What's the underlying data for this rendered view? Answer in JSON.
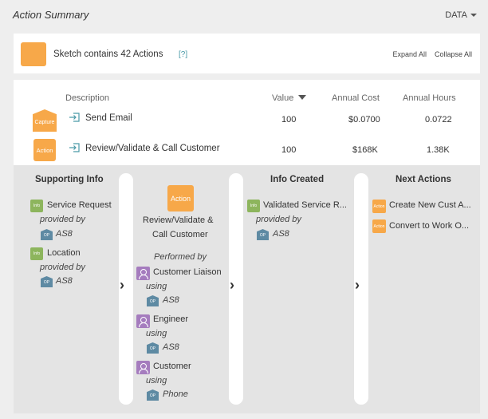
{
  "header": {
    "title": "Action Summary",
    "data_menu": "DATA"
  },
  "summary": {
    "sketch_text": "Sketch contains 42 Actions",
    "help": "[?]",
    "expand_all": "Expand All",
    "collapse_all": "Collapse All"
  },
  "table": {
    "columns": {
      "description": "Description",
      "value": "Value",
      "annual_cost": "Annual Cost",
      "annual_hours": "Annual Hours"
    },
    "rows": [
      {
        "badge": "Capture",
        "description": "Send Email",
        "value": "100",
        "annual_cost": "$0.0700",
        "annual_hours": "0.0722"
      },
      {
        "badge": "Action",
        "description": "Review/Validate & Call Customer",
        "value": "100",
        "annual_cost": "$168K",
        "annual_hours": "1.38K"
      }
    ]
  },
  "detail": {
    "supporting": {
      "title": "Supporting Info",
      "items": [
        {
          "icon": "Info",
          "name": "Service Request",
          "provided_by": "provided by",
          "op": "OP",
          "system": "AS8"
        },
        {
          "icon": "Info",
          "name": "Location",
          "provided_by": "provided by",
          "op": "OP",
          "system": "AS8"
        }
      ]
    },
    "action": {
      "icon": "Action",
      "name_line1": "Review/Validate &",
      "name_line2": "Call Customer",
      "performed_by": "Performed by",
      "performers": [
        {
          "name": "Customer Liaison",
          "using": "using",
          "op": "OP",
          "system": "AS8"
        },
        {
          "name": "Engineer",
          "using": "using",
          "op": "OP",
          "system": "AS8"
        },
        {
          "name": "Customer",
          "using": "using",
          "op": "OP",
          "system": "Phone"
        }
      ]
    },
    "created": {
      "title": "Info Created",
      "items": [
        {
          "icon": "Info",
          "name": "Validated Service R...",
          "provided_by": "provided by",
          "op": "OP",
          "system": "AS8"
        }
      ]
    },
    "next": {
      "title": "Next Actions",
      "items": [
        {
          "icon": "Action",
          "name": "Create New Cust A..."
        },
        {
          "icon": "Action",
          "name": "Convert to Work O..."
        }
      ]
    }
  }
}
